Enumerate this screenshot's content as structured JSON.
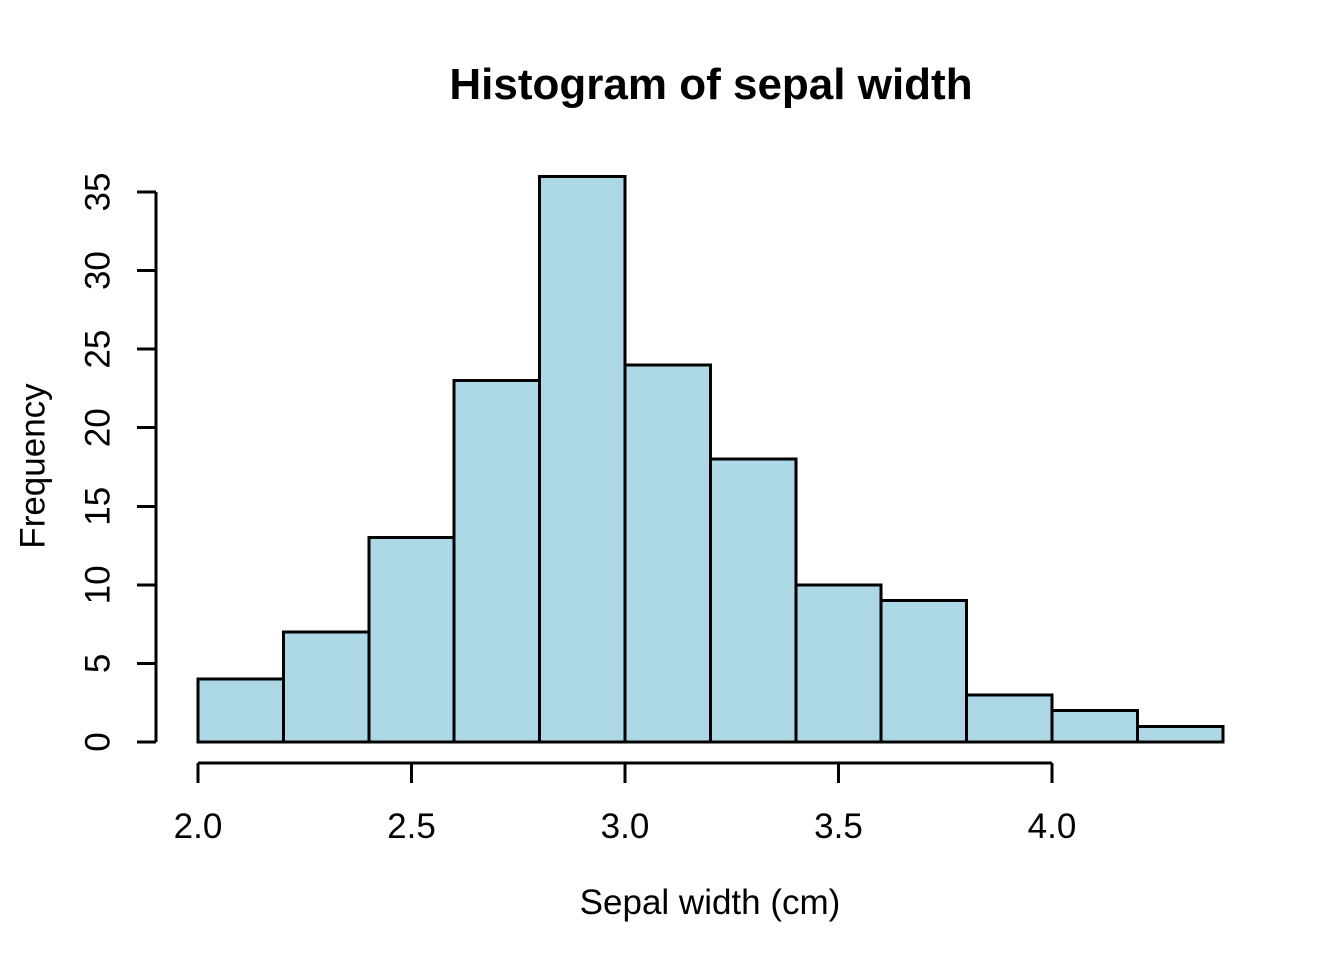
{
  "window": {
    "background": "#FFFFFF"
  },
  "chart_data": {
    "type": "bar",
    "subtype": "histogram",
    "title": "Histogram of sepal width",
    "xlabel": "Sepal width (cm)",
    "ylabel": "Frequency",
    "breaks": [
      2.0,
      2.2,
      2.4,
      2.6,
      2.8,
      3.0,
      3.2,
      3.4,
      3.6,
      3.8,
      4.0,
      4.2,
      4.4
    ],
    "counts": [
      4,
      7,
      13,
      23,
      36,
      24,
      18,
      10,
      9,
      3,
      2,
      1
    ],
    "x_tick_values": [
      2.0,
      2.5,
      3.0,
      3.5,
      4.0
    ],
    "x_tick_labels": [
      "2.0",
      "2.5",
      "3.0",
      "3.5",
      "4.0"
    ],
    "y_tick_values": [
      0,
      5,
      10,
      15,
      20,
      25,
      30,
      35
    ],
    "y_tick_labels": [
      "0",
      "5",
      "10",
      "15",
      "20",
      "25",
      "30",
      "35"
    ],
    "xlim": [
      2.0,
      4.4
    ],
    "ylim": [
      0,
      36
    ],
    "grid": false,
    "legend": null,
    "bar_fill": "#ADD8E6",
    "bar_stroke": "#000000",
    "axis_color": "#000000",
    "text_color": "#000000"
  }
}
